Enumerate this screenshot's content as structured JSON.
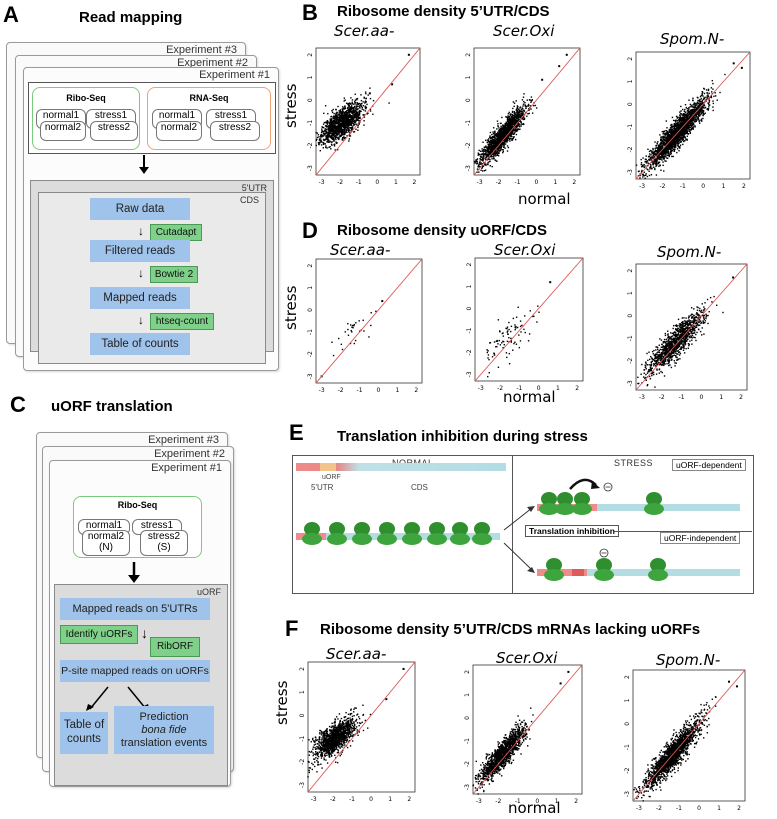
{
  "panels": {
    "A": {
      "letter": "A",
      "title": "Read mapping",
      "experiments": [
        "Experiment #3",
        "Experiment #2",
        "Experiment #1"
      ],
      "ribo": {
        "title": "Ribo-Seq",
        "reps": [
          "normal1",
          "normal2",
          "stress1",
          "stress2"
        ]
      },
      "rna": {
        "title": "RNA-Seq",
        "reps": [
          "normal1",
          "normal2",
          "stress1",
          "stress2"
        ]
      },
      "region_back": "5'UTR",
      "region_front": "CDS",
      "steps": [
        "Raw data",
        "Filtered reads",
        "Mapped reads",
        "Table of counts"
      ],
      "tools": [
        "Cutadapt",
        "Bowtie 2",
        "htseq-count"
      ]
    },
    "B": {
      "letter": "B",
      "title": "Ribosome density 5’UTR/CDS"
    },
    "C": {
      "letter": "C",
      "title": "uORF translation",
      "experiments": [
        "Experiment #3",
        "Experiment #2",
        "Experiment #1"
      ],
      "ribo": {
        "title": "Ribo-Seq",
        "reps": [
          "normal1",
          "normal2\n(N)",
          "stress1",
          "stress2\n(S)"
        ]
      },
      "region": "uORF",
      "steps": [
        "Mapped reads on 5'UTRs",
        "P-site mapped reads on uORFs",
        "Table of counts"
      ],
      "prediction": {
        "line1": "Prediction",
        "line2": "bona fide",
        "line3": "translation events"
      },
      "tools": [
        "Identify uORFs",
        "RibORF"
      ]
    },
    "D": {
      "letter": "D",
      "title": "Ribosome density  uORF/CDS"
    },
    "E": {
      "letter": "E",
      "title": "Translation inhibition  during stress",
      "normal_label": "NORMAL",
      "stress_label": "STRESS",
      "uorf_label": "uORF",
      "utr_label": "5'UTR",
      "cds_label": "CDS",
      "dep_label": "uORF-dependent",
      "indep_label": "uORF-independent",
      "inhibition_label": "Translation inhibition",
      "minus_sign": "−"
    },
    "F": {
      "letter": "F",
      "title": "Ribosome density  5’UTR/CDS mRNAs lacking uORFs"
    }
  },
  "axis_labels": {
    "stress": "stress",
    "normal": "normal"
  },
  "chart_data": [
    {
      "id": "B1",
      "panel": "B",
      "type": "scatter",
      "title": "Scer.aa-",
      "xlabel": "normal",
      "ylabel": "stress",
      "xlim": [
        -3.3,
        2.3
      ],
      "ylim": [
        -3.3,
        2.3
      ],
      "x_ticks": [
        -3,
        -2,
        -1,
        0,
        1,
        2
      ],
      "y_ticks": [
        -3,
        -2,
        -1,
        0,
        1,
        2
      ],
      "diagonal": "y = x",
      "cloud": {
        "n": 1300,
        "cx": -1.9,
        "cy": -1.0,
        "sx": 0.55,
        "slope": 0.55,
        "sy": 0.33,
        "seed": 11
      },
      "outliers": [
        [
          0.8,
          0.7
        ],
        [
          1.7,
          2.0
        ],
        [
          -0.4,
          0.3
        ]
      ]
    },
    {
      "id": "B2",
      "panel": "B",
      "type": "scatter",
      "title": "Scer.Oxi",
      "xlabel": "normal",
      "ylabel": "stress",
      "xlim": [
        -3.3,
        2.3
      ],
      "ylim": [
        -3.3,
        2.3
      ],
      "x_ticks": [
        -3,
        -2,
        -1,
        0,
        1,
        2
      ],
      "y_ticks": [
        -3,
        -2,
        -1,
        0,
        1,
        2
      ],
      "diagonal": "y = x",
      "cloud": {
        "n": 1500,
        "cx": -1.8,
        "cy": -1.6,
        "sx": 0.6,
        "slope": 0.9,
        "sy": 0.28,
        "seed": 23
      },
      "outliers": [
        [
          1.2,
          1.5
        ],
        [
          1.6,
          2.0
        ],
        [
          0.3,
          0.9
        ]
      ]
    },
    {
      "id": "B3",
      "panel": "B",
      "type": "scatter",
      "title": "Spom.N-",
      "xlabel": "normal",
      "ylabel": "stress",
      "xlim": [
        -3.3,
        2.3
      ],
      "ylim": [
        -3.3,
        2.3
      ],
      "x_ticks": [
        -3,
        -2,
        -1,
        0,
        1,
        2
      ],
      "y_ticks": [
        -3,
        -2,
        -1,
        0,
        1,
        2
      ],
      "diagonal": "y = x",
      "cloud": {
        "n": 2000,
        "cx": -1.3,
        "cy": -1.3,
        "sx": 0.7,
        "slope": 0.95,
        "sy": 0.3,
        "seed": 37
      },
      "outliers": [
        [
          1.5,
          1.8
        ],
        [
          1.9,
          1.6
        ]
      ]
    },
    {
      "id": "D1",
      "panel": "D",
      "type": "scatter",
      "title": "Scer.aa-",
      "xlabel": "normal",
      "ylabel": "stress",
      "xlim": [
        -3.3,
        2.3
      ],
      "ylim": [
        -3.3,
        2.3
      ],
      "x_ticks": [
        -3,
        -2,
        -1,
        0,
        1,
        2
      ],
      "y_ticks": [
        -3,
        -2,
        -1,
        0,
        1,
        2
      ],
      "diagonal": "y = x",
      "cloud": {
        "n": 30,
        "cx": -1.3,
        "cy": -1.0,
        "sx": 0.7,
        "slope": 0.75,
        "sy": 0.35,
        "seed": 41
      },
      "outliers": [
        [
          -3.0,
          -3.0
        ],
        [
          0.2,
          0.4
        ]
      ]
    },
    {
      "id": "D2",
      "panel": "D",
      "type": "scatter",
      "title": "Scer.Oxi",
      "xlabel": "normal",
      "ylabel": "stress",
      "xlim": [
        -3.3,
        2.3
      ],
      "ylim": [
        -3.3,
        2.3
      ],
      "x_ticks": [
        -3,
        -2,
        -1,
        0,
        1,
        2
      ],
      "y_ticks": [
        -3,
        -2,
        -1,
        0,
        1,
        2
      ],
      "diagonal": "y = x",
      "cloud": {
        "n": 90,
        "cx": -1.6,
        "cy": -1.3,
        "sx": 0.8,
        "slope": 0.7,
        "sy": 0.45,
        "seed": 53
      },
      "outliers": [
        [
          0.6,
          1.2
        ]
      ]
    },
    {
      "id": "D3",
      "panel": "D",
      "type": "scatter",
      "title": "Spom.N-",
      "xlabel": "normal",
      "ylabel": "stress",
      "xlim": [
        -3.3,
        2.3
      ],
      "ylim": [
        -3.3,
        2.3
      ],
      "x_ticks": [
        -3,
        -2,
        -1,
        0,
        1,
        2
      ],
      "y_ticks": [
        -3,
        -2,
        -1,
        0,
        1,
        2
      ],
      "diagonal": "y = x",
      "cloud": {
        "n": 1100,
        "cx": -1.3,
        "cy": -1.2,
        "sx": 0.7,
        "slope": 0.85,
        "sy": 0.32,
        "seed": 67
      },
      "outliers": [
        [
          1.6,
          1.7
        ]
      ]
    },
    {
      "id": "F1",
      "panel": "F",
      "type": "scatter",
      "title": "Scer.aa-",
      "xlabel": "normal",
      "ylabel": "stress",
      "xlim": [
        -3.3,
        2.3
      ],
      "ylim": [
        -3.3,
        2.3
      ],
      "x_ticks": [
        -3,
        -2,
        -1,
        0,
        1,
        2
      ],
      "y_ticks": [
        -3,
        -2,
        -1,
        0,
        1,
        2
      ],
      "diagonal": "y = x",
      "cloud": {
        "n": 1200,
        "cx": -1.9,
        "cy": -1.0,
        "sx": 0.55,
        "slope": 0.55,
        "sy": 0.33,
        "seed": 71
      },
      "outliers": [
        [
          0.8,
          0.7
        ],
        [
          1.7,
          2.0
        ]
      ]
    },
    {
      "id": "F2",
      "panel": "F",
      "type": "scatter",
      "title": "Scer.Oxi",
      "xlabel": "normal",
      "ylabel": "stress",
      "xlim": [
        -3.3,
        2.3
      ],
      "ylim": [
        -3.3,
        2.3
      ],
      "x_ticks": [
        -3,
        -2,
        -1,
        0,
        1,
        2
      ],
      "y_ticks": [
        -3,
        -2,
        -1,
        0,
        1,
        2
      ],
      "diagonal": "y = x",
      "cloud": {
        "n": 1300,
        "cx": -1.8,
        "cy": -1.6,
        "sx": 0.6,
        "slope": 0.9,
        "sy": 0.28,
        "seed": 83
      },
      "outliers": [
        [
          1.2,
          1.5
        ],
        [
          1.6,
          2.0
        ]
      ]
    },
    {
      "id": "F3",
      "panel": "F",
      "type": "scatter",
      "title": "Spom.N-",
      "xlabel": "normal",
      "ylabel": "stress",
      "xlim": [
        -3.3,
        2.3
      ],
      "ylim": [
        -3.3,
        2.3
      ],
      "x_ticks": [
        -3,
        -2,
        -1,
        0,
        1,
        2
      ],
      "y_ticks": [
        -3,
        -2,
        -1,
        0,
        1,
        2
      ],
      "diagonal": "y = x",
      "cloud": {
        "n": 1700,
        "cx": -1.3,
        "cy": -1.3,
        "sx": 0.7,
        "slope": 0.95,
        "sy": 0.3,
        "seed": 97
      },
      "outliers": [
        [
          1.5,
          1.8
        ],
        [
          1.9,
          1.6
        ]
      ]
    }
  ]
}
